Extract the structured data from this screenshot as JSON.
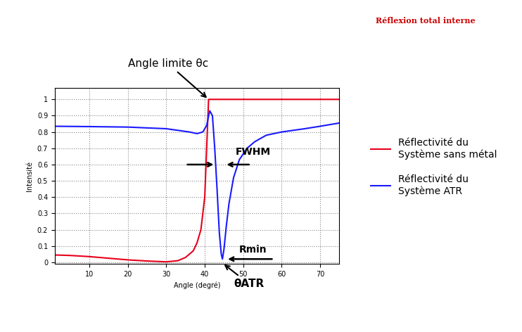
{
  "chart_data": {
    "type": "line",
    "x_label": "Angle (degré)",
    "y_label": "Intensité",
    "xlim": [
      1,
      75
    ],
    "xticks": [
      10,
      20,
      30,
      40,
      50,
      60,
      70
    ],
    "ylim": [
      -0.01,
      1.07
    ],
    "yticks": [
      0,
      0.1,
      0.2,
      0.3,
      0.4,
      0.5,
      0.6,
      0.7,
      0.8,
      0.9,
      1
    ],
    "grid": true,
    "legend": "right",
    "series": [
      {
        "name": "Réflectivité du\nSystème sans métal",
        "color": "#e8001c",
        "x": [
          1,
          5,
          10,
          15,
          20,
          25,
          30,
          33,
          35,
          37,
          38,
          39,
          40,
          40.5,
          41,
          45,
          50,
          60,
          70,
          75
        ],
        "values": [
          0.045,
          0.042,
          0.035,
          0.025,
          0.015,
          0.008,
          0.003,
          0.01,
          0.03,
          0.07,
          0.12,
          0.2,
          0.4,
          0.7,
          1.0,
          1.0,
          1.0,
          1.0,
          1.0,
          1.0
        ]
      },
      {
        "name": "Réflectivité du\nSystème ATR",
        "color": "#1a1aff",
        "x": [
          1,
          10,
          20,
          30,
          33,
          36,
          38,
          39.5,
          40.5,
          41.3,
          42,
          42.6,
          43.2,
          43.8,
          44.3,
          44.6,
          45,
          45.6,
          46.3,
          47.5,
          49,
          51,
          53,
          56,
          60,
          66,
          70,
          75
        ],
        "values": [
          0.835,
          0.833,
          0.83,
          0.82,
          0.81,
          0.8,
          0.79,
          0.8,
          0.84,
          0.93,
          0.9,
          0.7,
          0.45,
          0.18,
          0.05,
          0.02,
          0.08,
          0.22,
          0.36,
          0.52,
          0.63,
          0.7,
          0.74,
          0.78,
          0.8,
          0.82,
          0.835,
          0.855
        ]
      }
    ],
    "annotations": {
      "critical_angle": "Angle limite θc",
      "fwhm": "FWHM",
      "r_min": "Rmin",
      "theta_atr": "θATR"
    },
    "inset_label": "Réflexion total interne"
  }
}
